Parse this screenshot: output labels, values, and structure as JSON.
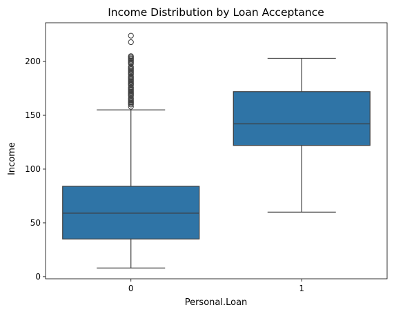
{
  "chart_data": {
    "type": "box",
    "title": "Income Distribution by Loan Acceptance",
    "xlabel": "Personal.Loan",
    "ylabel": "Income",
    "categories": [
      "0",
      "1"
    ],
    "ylim": [
      -2,
      236
    ],
    "yticks": [
      0,
      50,
      100,
      150,
      200
    ],
    "grid": false,
    "box_color": "#2f74a6",
    "line_color": "#3d3d3d",
    "boxes": [
      {
        "category": "0",
        "whisker_low": 8,
        "q1": 35,
        "median": 59,
        "q3": 84,
        "whisker_high": 155,
        "outliers": [
          158,
          160,
          161,
          162,
          163,
          164,
          165,
          166,
          168,
          169,
          170,
          171,
          172,
          173,
          174,
          175,
          176,
          178,
          179,
          180,
          181,
          182,
          183,
          184,
          185,
          186,
          188,
          189,
          190,
          191,
          192,
          193,
          194,
          195,
          198,
          199,
          200,
          201,
          202,
          203,
          204,
          205,
          218,
          224
        ]
      },
      {
        "category": "1",
        "whisker_low": 60,
        "q1": 122,
        "median": 142,
        "q3": 172,
        "whisker_high": 203,
        "outliers": []
      }
    ]
  }
}
